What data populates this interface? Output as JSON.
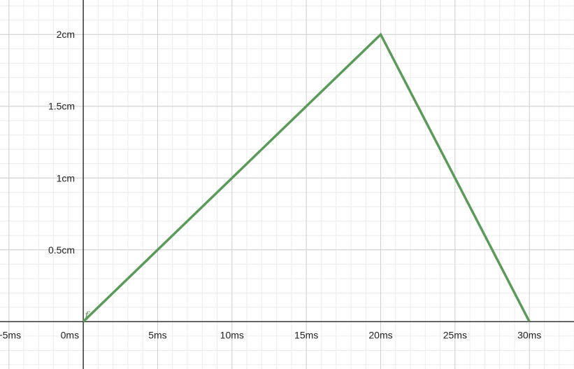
{
  "chart_data": {
    "type": "line",
    "xlim": [
      -5.6,
      33
    ],
    "ylim": [
      -0.33,
      2.24
    ],
    "x_ticks": [
      -5,
      0,
      5,
      10,
      15,
      20,
      25,
      30
    ],
    "x_tick_labels": [
      "−5ms",
      "0ms",
      "5ms",
      "10ms",
      "15ms",
      "20ms",
      "25ms",
      "30ms"
    ],
    "y_ticks": [
      0.5,
      1,
      1.5,
      2
    ],
    "y_tick_labels": [
      "0.5cm",
      "1cm",
      "1.5cm",
      "2cm"
    ],
    "grid": true,
    "minor_grid_step_x": 1,
    "minor_grid_step_y": 0.1,
    "series": [
      {
        "name": "f",
        "color": "#5b9a5b",
        "x": [
          0,
          20,
          30
        ],
        "y": [
          0,
          2,
          0
        ]
      }
    ]
  }
}
